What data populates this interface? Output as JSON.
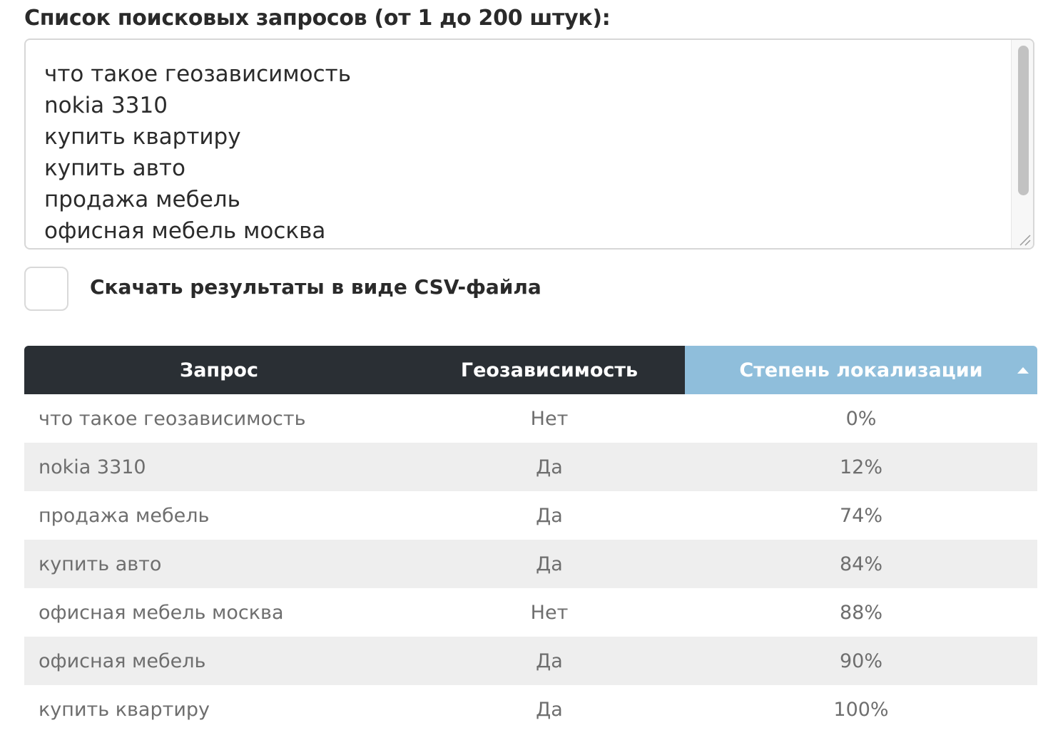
{
  "form": {
    "queries_label": "Список поисковых запросов (от 1 до 200 штук):",
    "queries_lines": [
      "что такое геозависимость",
      "nokia 3310",
      "купить квартиру",
      "купить авто",
      "продажа мебель",
      "офисная мебель москва"
    ],
    "csv_checkbox_checked": false,
    "csv_checkbox_label": "Скачать результаты в виде CSV-файла"
  },
  "results": {
    "headers": {
      "query": "Запрос",
      "geo": "Геозависимость",
      "localization": "Степень локализации"
    },
    "sorted_column": "localization",
    "sort_direction": "ascending",
    "sort_icon": "caret-up-icon",
    "rows": [
      {
        "query": "что такое геозависимость",
        "geo": "Нет",
        "localization": "0%"
      },
      {
        "query": "nokia 3310",
        "geo": "Да",
        "localization": "12%"
      },
      {
        "query": "продажа мебель",
        "geo": "Да",
        "localization": "74%"
      },
      {
        "query": "купить авто",
        "geo": "Да",
        "localization": "84%"
      },
      {
        "query": "офисная мебель москва",
        "geo": "Нет",
        "localization": "88%"
      },
      {
        "query": "офисная мебель",
        "geo": "Да",
        "localization": "90%"
      },
      {
        "query": "купить квартиру",
        "geo": "Да",
        "localization": "100%"
      }
    ]
  },
  "colors": {
    "header_dark": "#2a2f34",
    "header_sorted": "#8fbedb",
    "row_stripe": "#eeeeee"
  }
}
